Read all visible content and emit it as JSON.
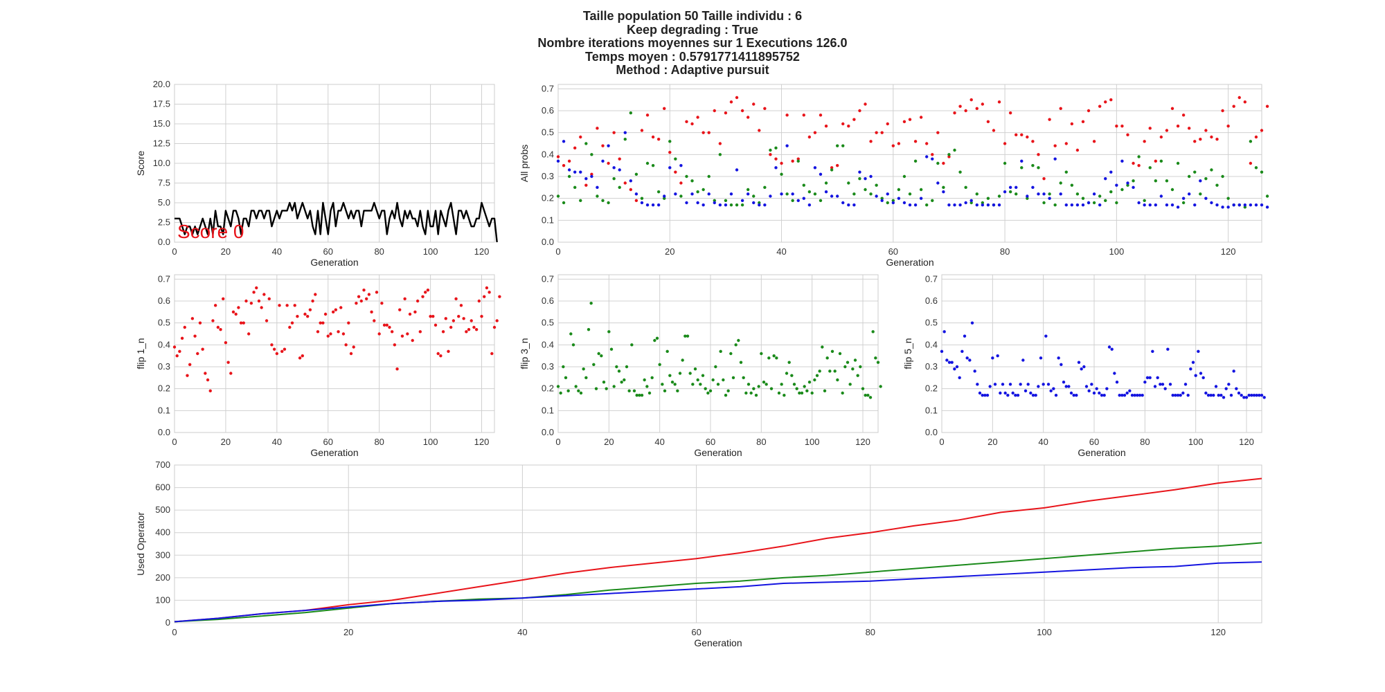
{
  "title": {
    "lines": [
      "Taille population  50 Taille individu : 6",
      "Keep degrading : True",
      "Nombre iterations moyennes sur 1 Executions 126.0",
      "Temps moyen : 0.5791771411895752",
      "Method : Adaptive pursuit"
    ]
  },
  "colors": {
    "red": "#e8141a",
    "green": "#1a8a1a",
    "blue": "#1414e0",
    "black": "#000000",
    "grid": "#d0d0d0"
  },
  "chart_data": [
    {
      "id": "score",
      "type": "line",
      "xlabel": "Generation",
      "ylabel": "Score",
      "xlim": [
        0,
        125
      ],
      "ylim": [
        0,
        20
      ],
      "xticks": [
        0,
        20,
        40,
        60,
        80,
        100,
        120
      ],
      "yticks": [
        0.0,
        2.5,
        5.0,
        7.5,
        10.0,
        12.5,
        15.0,
        17.5,
        20.0
      ],
      "ytick_labels": [
        "0.0",
        "2.5",
        "5.0",
        "7.5",
        "10.0",
        "12.5",
        "15.0",
        "17.5",
        "20.0"
      ],
      "grid": true,
      "annotation": "Score 0",
      "series": [
        {
          "color": "black",
          "values": [
            3,
            3,
            3,
            2,
            1,
            2,
            2,
            1,
            2,
            1,
            2,
            3,
            2,
            1,
            3,
            1,
            4,
            2,
            2,
            1,
            4,
            3,
            2,
            4,
            4,
            3,
            1,
            3,
            3,
            2,
            4,
            4,
            3,
            4,
            4,
            3,
            4,
            4,
            2,
            3,
            4,
            3,
            4,
            4,
            4,
            5,
            4,
            5,
            3,
            4,
            5,
            4,
            3,
            4,
            2,
            1,
            4,
            1,
            5,
            3,
            1,
            4,
            5,
            2,
            4,
            4,
            5,
            4,
            3,
            4,
            3,
            4,
            4,
            2,
            4,
            4,
            4,
            4,
            5,
            4,
            3,
            4,
            4,
            1,
            3,
            4,
            3,
            5,
            3,
            2,
            4,
            3,
            4,
            3,
            3,
            2,
            4,
            2,
            1,
            4,
            2,
            2,
            4,
            1,
            4,
            3,
            2,
            4,
            5,
            3,
            1,
            4,
            4,
            3,
            4,
            3,
            2,
            2,
            3,
            3,
            5,
            4,
            3,
            2,
            3,
            3,
            0
          ]
        }
      ]
    },
    {
      "id": "allprobs",
      "type": "scatter",
      "xlabel": "Generation",
      "ylabel": "All probs",
      "xlim": [
        0,
        126
      ],
      "ylim": [
        0,
        0.72
      ],
      "xticks": [
        0,
        20,
        40,
        60,
        80,
        100,
        120
      ],
      "yticks": [
        0.0,
        0.1,
        0.2,
        0.3,
        0.4,
        0.5,
        0.6,
        0.7
      ],
      "ytick_labels": [
        "0.0",
        "0.1",
        "0.2",
        "0.3",
        "0.4",
        "0.5",
        "0.6",
        "0.7"
      ],
      "grid": true,
      "series_refs": [
        "flip1",
        "flip3",
        "flip5"
      ]
    },
    {
      "id": "flip1",
      "type": "scatter",
      "xlabel": "Generation",
      "ylabel": "flip 1_n",
      "xlim": [
        0,
        125
      ],
      "ylim": [
        0,
        0.72
      ],
      "xticks": [
        0,
        20,
        40,
        60,
        80,
        100,
        120
      ],
      "yticks": [
        0.0,
        0.1,
        0.2,
        0.3,
        0.4,
        0.5,
        0.6,
        0.7
      ],
      "ytick_labels": [
        "0.0",
        "0.1",
        "0.2",
        "0.3",
        "0.4",
        "0.5",
        "0.6",
        "0.7"
      ],
      "grid": true,
      "series": [
        {
          "color": "red",
          "values": [
            0.39,
            0.35,
            0.37,
            0.43,
            0.48,
            0.26,
            0.31,
            0.52,
            0.44,
            0.36,
            0.5,
            0.38,
            0.27,
            0.24,
            0.19,
            0.51,
            0.58,
            0.48,
            0.47,
            0.61,
            0.41,
            0.32,
            0.27,
            0.55,
            0.54,
            0.57,
            0.5,
            0.5,
            0.6,
            0.45,
            0.59,
            0.64,
            0.66,
            0.6,
            0.57,
            0.63,
            0.51,
            0.61,
            0.4,
            0.38,
            0.36,
            0.58,
            0.37,
            0.38,
            0.58,
            0.48,
            0.5,
            0.58,
            0.53,
            0.34,
            0.35,
            0.54,
            0.53,
            0.56,
            0.6,
            0.63,
            0.46,
            0.5,
            0.5,
            0.54,
            0.44,
            0.45,
            0.55,
            0.56,
            0.46,
            0.57,
            0.45,
            0.4,
            0.5,
            0.36,
            0.39,
            0.59,
            0.62,
            0.6,
            0.65,
            0.61,
            0.63,
            0.55,
            0.51,
            0.64,
            0.45,
            0.59,
            0.49,
            0.49,
            0.48,
            0.46,
            0.4,
            0.29,
            0.56,
            0.44,
            0.61,
            0.45,
            0.54,
            0.42,
            0.55,
            0.6,
            0.46,
            0.62,
            0.64,
            0.65,
            0.53,
            0.53,
            0.49,
            0.36,
            0.35,
            0.46,
            0.52,
            0.37,
            0.48,
            0.51,
            0.61,
            0.53,
            0.58,
            0.52,
            0.46,
            0.47,
            0.51,
            0.48,
            0.47,
            0.6,
            0.53,
            0.62,
            0.66,
            0.64,
            0.36,
            0.48,
            0.51,
            0.62
          ]
        }
      ]
    },
    {
      "id": "flip3",
      "type": "scatter",
      "xlabel": "Generation",
      "ylabel": "flip 3_n",
      "xlim": [
        0,
        126
      ],
      "ylim": [
        0,
        0.72
      ],
      "xticks": [
        0,
        20,
        40,
        60,
        80,
        100,
        120
      ],
      "yticks": [
        0.0,
        0.1,
        0.2,
        0.3,
        0.4,
        0.5,
        0.6,
        0.7
      ],
      "ytick_labels": [
        "0.0",
        "0.1",
        "0.2",
        "0.3",
        "0.4",
        "0.5",
        "0.6",
        "0.7"
      ],
      "grid": true,
      "series": [
        {
          "color": "green",
          "values": [
            0.21,
            0.18,
            0.3,
            0.25,
            0.19,
            0.45,
            0.4,
            0.21,
            0.19,
            0.18,
            0.29,
            0.25,
            0.47,
            0.59,
            0.31,
            0.2,
            0.36,
            0.35,
            0.23,
            0.2,
            0.46,
            0.38,
            0.21,
            0.3,
            0.28,
            0.23,
            0.24,
            0.3,
            0.19,
            0.4,
            0.19,
            0.17,
            0.17,
            0.17,
            0.24,
            0.21,
            0.18,
            0.25,
            0.42,
            0.43,
            0.31,
            0.22,
            0.19,
            0.37,
            0.26,
            0.23,
            0.22,
            0.19,
            0.27,
            0.33,
            0.44,
            0.44,
            0.27,
            0.22,
            0.29,
            0.24,
            0.22,
            0.26,
            0.2,
            0.18,
            0.19,
            0.24,
            0.3,
            0.22,
            0.37,
            0.24,
            0.17,
            0.19,
            0.36,
            0.25,
            0.4,
            0.42,
            0.32,
            0.25,
            0.18,
            0.22,
            0.18,
            0.2,
            0.17,
            0.21,
            0.36,
            0.23,
            0.22,
            0.34,
            0.2,
            0.35,
            0.34,
            0.18,
            0.22,
            0.17,
            0.27,
            0.32,
            0.26,
            0.22,
            0.2,
            0.18,
            0.18,
            0.21,
            0.19,
            0.23,
            0.18,
            0.24,
            0.26,
            0.28,
            0.39,
            0.19,
            0.34,
            0.28,
            0.37,
            0.28,
            0.24,
            0.36,
            0.18,
            0.3,
            0.32,
            0.22,
            0.29,
            0.33,
            0.26,
            0.3,
            0.2,
            0.17,
            0.17,
            0.16,
            0.46,
            0.34,
            0.32,
            0.21
          ]
        }
      ]
    },
    {
      "id": "flip5",
      "type": "scatter",
      "xlabel": "Generation",
      "ylabel": "flip 5_n",
      "xlim": [
        0,
        126
      ],
      "ylim": [
        0,
        0.72
      ],
      "xticks": [
        0,
        20,
        40,
        60,
        80,
        100,
        120
      ],
      "yticks": [
        0.0,
        0.1,
        0.2,
        0.3,
        0.4,
        0.5,
        0.6,
        0.7
      ],
      "ytick_labels": [
        "0.0",
        "0.1",
        "0.2",
        "0.3",
        "0.4",
        "0.5",
        "0.6",
        "0.7"
      ],
      "grid": true,
      "series": [
        {
          "color": "blue",
          "values": [
            0.37,
            0.46,
            0.33,
            0.32,
            0.32,
            0.29,
            0.3,
            0.25,
            0.37,
            0.44,
            0.34,
            0.33,
            0.5,
            0.28,
            0.22,
            0.18,
            0.17,
            0.17,
            0.17,
            0.21,
            0.34,
            0.22,
            0.35,
            0.18,
            0.22,
            0.18,
            0.17,
            0.22,
            0.18,
            0.17,
            0.17,
            0.22,
            0.33,
            0.19,
            0.22,
            0.18,
            0.17,
            0.17,
            0.21,
            0.34,
            0.22,
            0.44,
            0.22,
            0.19,
            0.2,
            0.17,
            0.34,
            0.31,
            0.23,
            0.21,
            0.21,
            0.18,
            0.17,
            0.17,
            0.32,
            0.29,
            0.3,
            0.21,
            0.19,
            0.22,
            0.18,
            0.2,
            0.18,
            0.17,
            0.17,
            0.2,
            0.39,
            0.38,
            0.27,
            0.23,
            0.17,
            0.17,
            0.17,
            0.18,
            0.19,
            0.17,
            0.17,
            0.17,
            0.17,
            0.17,
            0.23,
            0.25,
            0.25,
            0.37,
            0.21,
            0.25,
            0.22,
            0.22,
            0.2,
            0.38,
            0.22,
            0.17,
            0.17,
            0.17,
            0.17,
            0.18,
            0.22,
            0.17,
            0.29,
            0.32,
            0.26,
            0.37,
            0.27,
            0.25,
            0.18,
            0.17,
            0.17,
            0.17,
            0.21,
            0.17,
            0.17,
            0.16,
            0.2,
            0.22,
            0.17,
            0.28,
            0.2,
            0.18,
            0.17,
            0.16,
            0.16,
            0.17,
            0.17,
            0.17,
            0.17,
            0.17,
            0.17,
            0.16
          ]
        }
      ]
    },
    {
      "id": "used",
      "type": "line",
      "xlabel": "Generation",
      "ylabel": "Used Operator",
      "xlim": [
        0,
        125
      ],
      "ylim": [
        0,
        700
      ],
      "xticks": [
        0,
        20,
        40,
        60,
        80,
        100,
        120
      ],
      "yticks": [
        0,
        100,
        200,
        300,
        400,
        500,
        600,
        700
      ],
      "ytick_labels": [
        "0",
        "100",
        "200",
        "300",
        "400",
        "500",
        "600",
        "700"
      ],
      "grid": true,
      "series": [
        {
          "color": "red",
          "points": [
            [
              0,
              5
            ],
            [
              5,
              20
            ],
            [
              10,
              40
            ],
            [
              15,
              55
            ],
            [
              20,
              80
            ],
            [
              25,
              100
            ],
            [
              30,
              130
            ],
            [
              35,
              160
            ],
            [
              40,
              190
            ],
            [
              45,
              220
            ],
            [
              50,
              245
            ],
            [
              55,
              265
            ],
            [
              60,
              285
            ],
            [
              65,
              310
            ],
            [
              70,
              340
            ],
            [
              75,
              375
            ],
            [
              80,
              400
            ],
            [
              85,
              430
            ],
            [
              90,
              455
            ],
            [
              95,
              490
            ],
            [
              100,
              510
            ],
            [
              105,
              540
            ],
            [
              110,
              565
            ],
            [
              115,
              590
            ],
            [
              120,
              620
            ],
            [
              125,
              640
            ]
          ]
        },
        {
          "color": "green",
          "points": [
            [
              0,
              5
            ],
            [
              5,
              15
            ],
            [
              10,
              30
            ],
            [
              15,
              45
            ],
            [
              20,
              65
            ],
            [
              25,
              85
            ],
            [
              30,
              95
            ],
            [
              35,
              105
            ],
            [
              40,
              110
            ],
            [
              45,
              125
            ],
            [
              50,
              145
            ],
            [
              55,
              160
            ],
            [
              60,
              175
            ],
            [
              65,
              185
            ],
            [
              70,
              200
            ],
            [
              75,
              210
            ],
            [
              80,
              225
            ],
            [
              85,
              240
            ],
            [
              90,
              255
            ],
            [
              95,
              270
            ],
            [
              100,
              285
            ],
            [
              105,
              300
            ],
            [
              110,
              315
            ],
            [
              115,
              330
            ],
            [
              120,
              340
            ],
            [
              125,
              355
            ]
          ]
        },
        {
          "color": "blue",
          "points": [
            [
              0,
              5
            ],
            [
              5,
              20
            ],
            [
              10,
              40
            ],
            [
              15,
              55
            ],
            [
              20,
              70
            ],
            [
              25,
              85
            ],
            [
              30,
              95
            ],
            [
              35,
              100
            ],
            [
              40,
              110
            ],
            [
              45,
              120
            ],
            [
              50,
              130
            ],
            [
              55,
              140
            ],
            [
              60,
              150
            ],
            [
              65,
              160
            ],
            [
              70,
              175
            ],
            [
              75,
              180
            ],
            [
              80,
              185
            ],
            [
              85,
              195
            ],
            [
              90,
              205
            ],
            [
              95,
              215
            ],
            [
              100,
              225
            ],
            [
              105,
              235
            ],
            [
              110,
              245
            ],
            [
              115,
              250
            ],
            [
              120,
              265
            ],
            [
              125,
              270
            ]
          ]
        }
      ]
    }
  ]
}
